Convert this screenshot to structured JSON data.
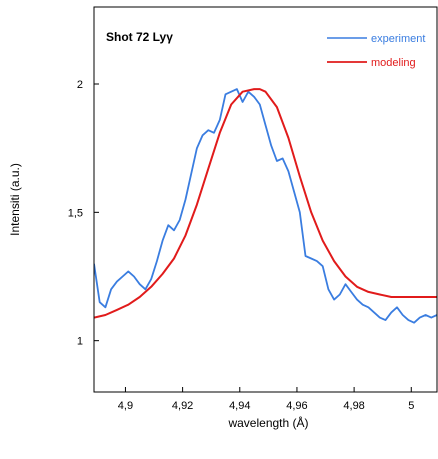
{
  "chart_data": {
    "type": "line",
    "title": "Shot 72   Lyγ",
    "xlabel": "wavelength (Å)",
    "ylabel": "Intensiti (a.u.)",
    "xlim": [
      4.889,
      5.009
    ],
    "ylim": [
      0.8,
      2.3
    ],
    "x_ticks": [
      4.9,
      4.92,
      4.94,
      4.96,
      4.98,
      5.0
    ],
    "x_tick_labels": [
      "4,9",
      "4,92",
      "4,94",
      "4,96",
      "4,98",
      "5"
    ],
    "y_ticks": [
      1.0,
      1.5,
      2.0
    ],
    "y_tick_labels": [
      "1",
      "1,5",
      "2"
    ],
    "grid": false,
    "legend_position": "top-right",
    "series": [
      {
        "name": "experiment",
        "color": "#3a7de0",
        "x": [
          4.889,
          4.891,
          4.893,
          4.895,
          4.897,
          4.899,
          4.901,
          4.903,
          4.905,
          4.907,
          4.909,
          4.911,
          4.913,
          4.915,
          4.917,
          4.919,
          4.921,
          4.923,
          4.925,
          4.927,
          4.929,
          4.931,
          4.933,
          4.935,
          4.937,
          4.939,
          4.941,
          4.943,
          4.945,
          4.947,
          4.949,
          4.951,
          4.953,
          4.955,
          4.957,
          4.959,
          4.961,
          4.963,
          4.965,
          4.967,
          4.969,
          4.971,
          4.973,
          4.975,
          4.977,
          4.979,
          4.981,
          4.983,
          4.985,
          4.987,
          4.989,
          4.991,
          4.993,
          4.995,
          4.997,
          4.999,
          5.001,
          5.003,
          5.005,
          5.007,
          5.009
        ],
        "y": [
          1.3,
          1.15,
          1.13,
          1.2,
          1.23,
          1.25,
          1.27,
          1.25,
          1.22,
          1.2,
          1.24,
          1.31,
          1.39,
          1.45,
          1.43,
          1.47,
          1.55,
          1.65,
          1.75,
          1.8,
          1.82,
          1.81,
          1.86,
          1.96,
          1.97,
          1.98,
          1.93,
          1.97,
          1.95,
          1.92,
          1.84,
          1.76,
          1.7,
          1.71,
          1.66,
          1.58,
          1.5,
          1.33,
          1.32,
          1.31,
          1.29,
          1.2,
          1.16,
          1.18,
          1.22,
          1.19,
          1.16,
          1.14,
          1.13,
          1.11,
          1.09,
          1.08,
          1.11,
          1.13,
          1.1,
          1.08,
          1.07,
          1.09,
          1.1,
          1.09,
          1.1
        ]
      },
      {
        "name": "modeling",
        "color": "#e11b1b",
        "x": [
          4.889,
          4.893,
          4.897,
          4.901,
          4.905,
          4.909,
          4.913,
          4.917,
          4.921,
          4.925,
          4.929,
          4.933,
          4.937,
          4.941,
          4.945,
          4.947,
          4.949,
          4.953,
          4.957,
          4.961,
          4.965,
          4.969,
          4.973,
          4.977,
          4.981,
          4.985,
          4.989,
          4.993,
          4.997,
          5.001,
          5.005,
          5.009
        ],
        "y": [
          1.09,
          1.1,
          1.12,
          1.14,
          1.17,
          1.21,
          1.26,
          1.32,
          1.41,
          1.53,
          1.67,
          1.81,
          1.92,
          1.97,
          1.98,
          1.98,
          1.97,
          1.91,
          1.79,
          1.64,
          1.5,
          1.39,
          1.31,
          1.25,
          1.21,
          1.19,
          1.18,
          1.17,
          1.17,
          1.17,
          1.17,
          1.17
        ]
      }
    ]
  }
}
